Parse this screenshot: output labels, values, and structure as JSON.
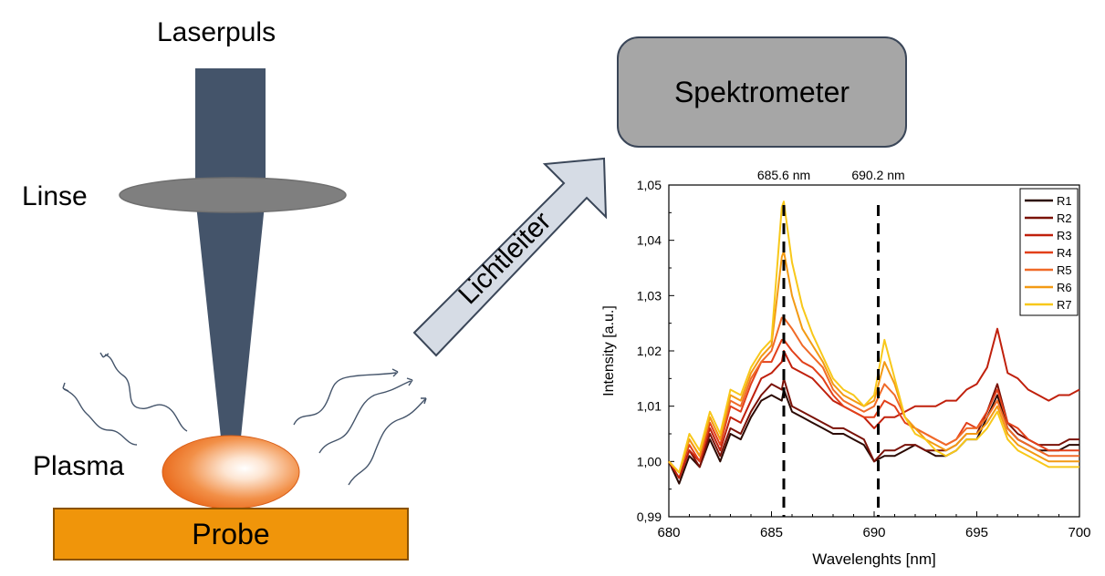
{
  "labels": {
    "laser": "Laserpuls",
    "lens": "Linse",
    "plasma": "Plasma",
    "probe": "Probe",
    "fiber": "Lichtleiter",
    "spectrometer": "Spektrometer"
  },
  "colors": {
    "laser_beam": "#44546a",
    "lens": "#7f7f7f",
    "probe": "#f0950a",
    "spectrometer": "#a6a6a6",
    "arrow_fill": "#d6dce5",
    "arrow_stroke": "#3a4658"
  },
  "chart_data": {
    "type": "line",
    "xlabel": "Wavelenghts [nm]",
    "ylabel": "Intensity [a.u.]",
    "xlim": [
      680,
      700
    ],
    "ylim": [
      0.99,
      1.05
    ],
    "xticks": [
      "680",
      "685",
      "690",
      "695",
      "700"
    ],
    "yticks": [
      "0,99",
      "1,00",
      "1,01",
      "1,02",
      "1,03",
      "1,04",
      "1,05"
    ],
    "legend_position": "top-right",
    "markers": [
      {
        "x": 685.6,
        "label": "685.6 nm"
      },
      {
        "x": 690.2,
        "label": "690.2 nm"
      }
    ],
    "x": [
      680,
      680.5,
      681,
      681.5,
      682,
      682.5,
      683,
      683.5,
      684,
      684.5,
      685,
      685.5,
      685.6,
      686,
      686.5,
      687,
      687.5,
      688,
      688.5,
      689,
      689.5,
      690,
      690.5,
      691,
      691.5,
      692,
      692.5,
      693,
      693.5,
      694,
      694.5,
      695,
      695.5,
      696,
      696.5,
      697,
      697.5,
      698,
      698.5,
      699,
      699.5,
      700
    ],
    "series": [
      {
        "name": "R1",
        "color": "#2b0a04",
        "values": [
          1.0,
          0.996,
          1.001,
          0.999,
          1.004,
          1.0,
          1.005,
          1.004,
          1.008,
          1.011,
          1.012,
          1.011,
          1.013,
          1.009,
          1.008,
          1.007,
          1.006,
          1.005,
          1.005,
          1.004,
          1.003,
          1.0,
          1.001,
          1.001,
          1.002,
          1.003,
          1.002,
          1.001,
          1.001,
          1.002,
          1.004,
          1.004,
          1.008,
          1.012,
          1.006,
          1.004,
          1.003,
          1.002,
          1.002,
          1.002,
          1.003,
          1.003
        ]
      },
      {
        "name": "R2",
        "color": "#7a1208",
        "values": [
          1.0,
          0.997,
          1.002,
          0.999,
          1.005,
          1.001,
          1.006,
          1.005,
          1.009,
          1.012,
          1.014,
          1.013,
          1.015,
          1.01,
          1.009,
          1.008,
          1.007,
          1.006,
          1.006,
          1.005,
          1.004,
          1.0,
          1.002,
          1.002,
          1.003,
          1.003,
          1.002,
          1.002,
          1.002,
          1.003,
          1.005,
          1.005,
          1.009,
          1.014,
          1.007,
          1.005,
          1.004,
          1.003,
          1.003,
          1.003,
          1.004,
          1.004
        ]
      },
      {
        "name": "R3",
        "color": "#c0200c",
        "values": [
          1.0,
          0.997,
          1.002,
          1.0,
          1.006,
          1.002,
          1.008,
          1.007,
          1.011,
          1.015,
          1.016,
          1.018,
          1.02,
          1.017,
          1.016,
          1.015,
          1.013,
          1.011,
          1.01,
          1.009,
          1.008,
          1.006,
          1.008,
          1.008,
          1.009,
          1.01,
          1.01,
          1.01,
          1.011,
          1.011,
          1.013,
          1.014,
          1.017,
          1.024,
          1.016,
          1.015,
          1.013,
          1.012,
          1.011,
          1.012,
          1.012,
          1.013
        ]
      },
      {
        "name": "R4",
        "color": "#e2401a",
        "values": [
          1.0,
          0.998,
          1.003,
          1.0,
          1.007,
          1.003,
          1.01,
          1.009,
          1.014,
          1.018,
          1.018,
          1.022,
          1.022,
          1.02,
          1.018,
          1.017,
          1.015,
          1.012,
          1.01,
          1.009,
          1.008,
          1.008,
          1.011,
          1.01,
          1.007,
          1.006,
          1.005,
          1.004,
          1.003,
          1.004,
          1.007,
          1.006,
          1.009,
          1.013,
          1.007,
          1.006,
          1.004,
          1.003,
          1.002,
          1.002,
          1.002,
          1.002
        ]
      },
      {
        "name": "R5",
        "color": "#f06a28",
        "values": [
          1.0,
          0.998,
          1.004,
          1.001,
          1.008,
          1.004,
          1.011,
          1.01,
          1.015,
          1.018,
          1.02,
          1.026,
          1.026,
          1.024,
          1.021,
          1.019,
          1.017,
          1.013,
          1.011,
          1.01,
          1.009,
          1.01,
          1.014,
          1.012,
          1.008,
          1.006,
          1.005,
          1.004,
          1.003,
          1.004,
          1.006,
          1.006,
          1.008,
          1.011,
          1.006,
          1.004,
          1.003,
          1.002,
          1.001,
          1.001,
          1.001,
          1.001
        ]
      },
      {
        "name": "R6",
        "color": "#f39a14",
        "values": [
          1.0,
          0.998,
          1.004,
          1.001,
          1.008,
          1.004,
          1.012,
          1.011,
          1.016,
          1.019,
          1.021,
          1.037,
          1.038,
          1.03,
          1.024,
          1.021,
          1.018,
          1.014,
          1.012,
          1.011,
          1.01,
          1.011,
          1.018,
          1.014,
          1.008,
          1.006,
          1.004,
          1.003,
          1.002,
          1.003,
          1.005,
          1.005,
          1.007,
          1.01,
          1.005,
          1.003,
          1.002,
          1.001,
          1.0,
          1.0,
          1.0,
          1.0
        ]
      },
      {
        "name": "R7",
        "color": "#f8c81a",
        "values": [
          1.0,
          0.998,
          1.005,
          1.002,
          1.009,
          1.005,
          1.013,
          1.012,
          1.017,
          1.02,
          1.022,
          1.046,
          1.047,
          1.036,
          1.028,
          1.023,
          1.019,
          1.015,
          1.013,
          1.012,
          1.01,
          1.012,
          1.022,
          1.015,
          1.008,
          1.005,
          1.004,
          1.002,
          1.001,
          1.002,
          1.004,
          1.004,
          1.006,
          1.009,
          1.004,
          1.002,
          1.001,
          1.0,
          0.999,
          0.999,
          0.999,
          0.999
        ]
      }
    ]
  }
}
